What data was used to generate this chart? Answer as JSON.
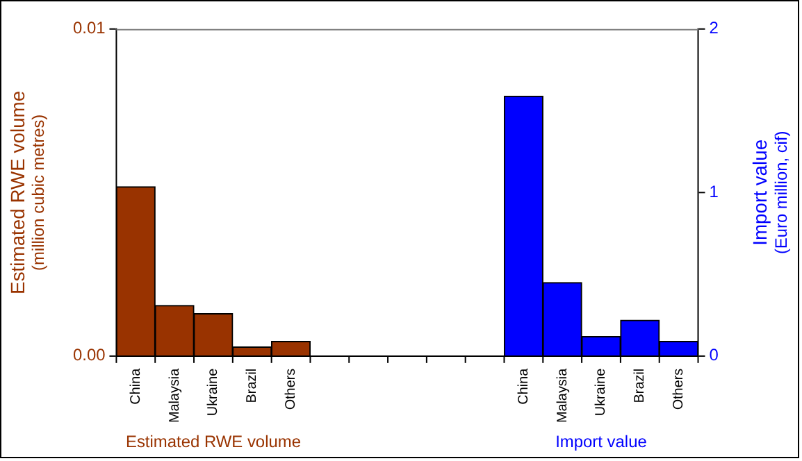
{
  "chart_data": {
    "type": "bar",
    "categories": [
      "China",
      "Malaysia",
      "Ukraine",
      "Brazil",
      "Others",
      null,
      null,
      null,
      null,
      null,
      "China",
      "Malaysia",
      "Ukraine",
      "Brazil",
      "Others"
    ],
    "series": [
      {
        "name": "Estimated RWE volume",
        "color": "#993300",
        "axis": "y",
        "values": [
          0.00518,
          0.00155,
          0.0013,
          0.00028,
          0.00045,
          null,
          null,
          null,
          null,
          null,
          null,
          null,
          null,
          null,
          null
        ]
      },
      {
        "name": "Import value",
        "color": "#0000ff",
        "axis": "y2",
        "values": [
          null,
          null,
          null,
          null,
          null,
          null,
          null,
          null,
          null,
          null,
          1.59,
          0.45,
          0.12,
          0.22,
          0.09
        ]
      }
    ],
    "ylabel": "Estimated RWE volume\n(million cubic metres)",
    "y2label": "Import value\n(Euro million, cif)",
    "ylim": [
      0,
      0.01
    ],
    "yticks": [
      {
        "value": 0,
        "label": "0.00"
      },
      {
        "value": 0.01,
        "label": "0.01"
      }
    ],
    "y2lim": [
      0,
      2
    ],
    "y2ticks": [
      0,
      1,
      2
    ],
    "grid": false,
    "legend": false
  }
}
